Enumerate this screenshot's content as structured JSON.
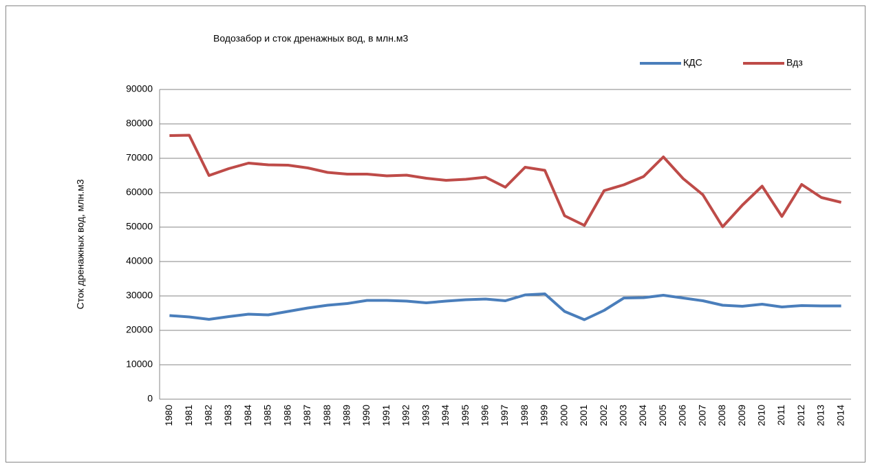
{
  "chart_data": {
    "type": "line",
    "title": "Водозабор и сток дренажных вод, в млн.м3",
    "y_label": "Сток дренажных вод, млн.м3",
    "categories": [
      "1980",
      "1981",
      "1982",
      "1983",
      "1984",
      "1985",
      "1986",
      "1987",
      "1988",
      "1989",
      "1990",
      "1991",
      "1992",
      "1993",
      "1994",
      "1995",
      "1996",
      "1997",
      "1998",
      "1999",
      "2000",
      "2001",
      "2002",
      "2003",
      "2004",
      "2005",
      "2006",
      "2007",
      "2008",
      "2009",
      "2010",
      "2011",
      "2012",
      "2013",
      "2014"
    ],
    "series": [
      {
        "name": "КДС",
        "color": "#4a7ebb",
        "values": [
          24300,
          23900,
          23200,
          24000,
          24700,
          24500,
          25500,
          26500,
          27300,
          27800,
          28700,
          28700,
          28500,
          28000,
          28500,
          28900,
          29100,
          28600,
          30300,
          30600,
          25500,
          23100,
          25800,
          29400,
          29500,
          30200,
          29400,
          28600,
          27300,
          27000,
          27600,
          26800,
          27200,
          27100,
          27100
        ]
      },
      {
        "name": "Вдз",
        "color": "#be4b48",
        "values": [
          76600,
          76700,
          65000,
          67000,
          68600,
          68100,
          68000,
          67200,
          65900,
          65400,
          65400,
          64900,
          65100,
          64200,
          63600,
          63900,
          64500,
          61600,
          67400,
          66500,
          53300,
          50500,
          60600,
          62300,
          64700,
          70400,
          64100,
          59400,
          50100,
          56400,
          61900,
          53100,
          62400,
          58600,
          57200
        ]
      }
    ],
    "ylim": [
      0,
      90000
    ],
    "yticks": [
      0,
      10000,
      20000,
      30000,
      40000,
      50000,
      60000,
      70000,
      80000,
      90000
    ],
    "grid": true,
    "legend": "top-right"
  }
}
